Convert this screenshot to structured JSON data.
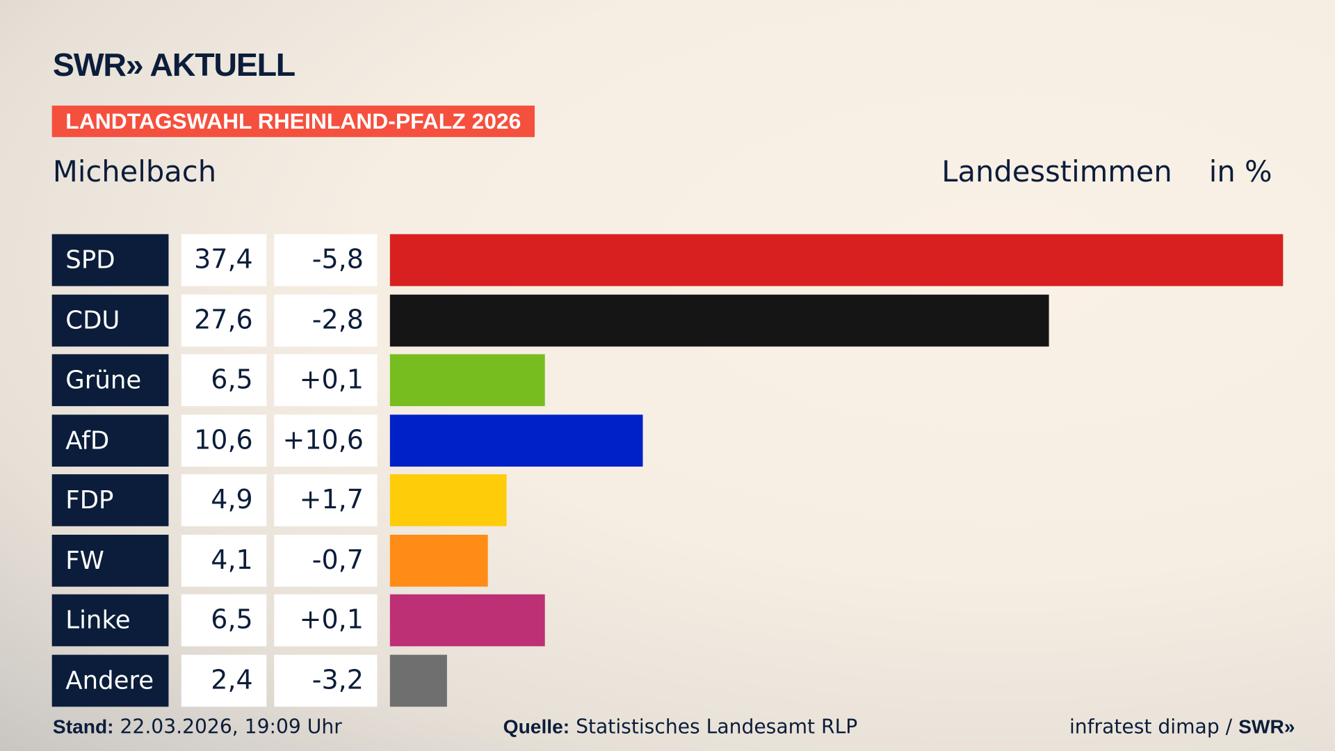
{
  "header": {
    "logo": "SWR» AKTUELL",
    "banner": "LANDTAGSWAHL RHEINLAND-PFALZ 2026",
    "place": "Michelbach",
    "vote_type": "Landesstimmen",
    "unit": "in %"
  },
  "chart_data": {
    "type": "bar",
    "orientation": "horizontal",
    "xlim": [
      0,
      37.4
    ],
    "categories": [
      "SPD",
      "CDU",
      "Grüne",
      "AfD",
      "FDP",
      "FW",
      "Linke",
      "Andere"
    ],
    "values": [
      37.4,
      27.6,
      6.5,
      10.6,
      4.9,
      4.1,
      6.5,
      2.4
    ],
    "value_labels": [
      "37,4",
      "27,6",
      "6,5",
      "10,6",
      "4,9",
      "4,1",
      "6,5",
      "2,4"
    ],
    "diff_labels": [
      "-5,8",
      "-2,8",
      "+0,1",
      "+10,6",
      "+1,7",
      "-0,7",
      "+0,1",
      "-3,2"
    ],
    "colors": [
      "#d82020",
      "#151515",
      "#78bd1f",
      "#0021c8",
      "#ffcc0a",
      "#ff8c17",
      "#bd3075",
      "#6f6f6f"
    ]
  },
  "footer": {
    "stand_label": "Stand:",
    "stand": "22.03.2026, 19:09 Uhr",
    "source_label": "Quelle:",
    "source": "Statistisches Landesamt RLP",
    "credit": "infratest dimap / ",
    "credit_logo": "SWR»"
  }
}
